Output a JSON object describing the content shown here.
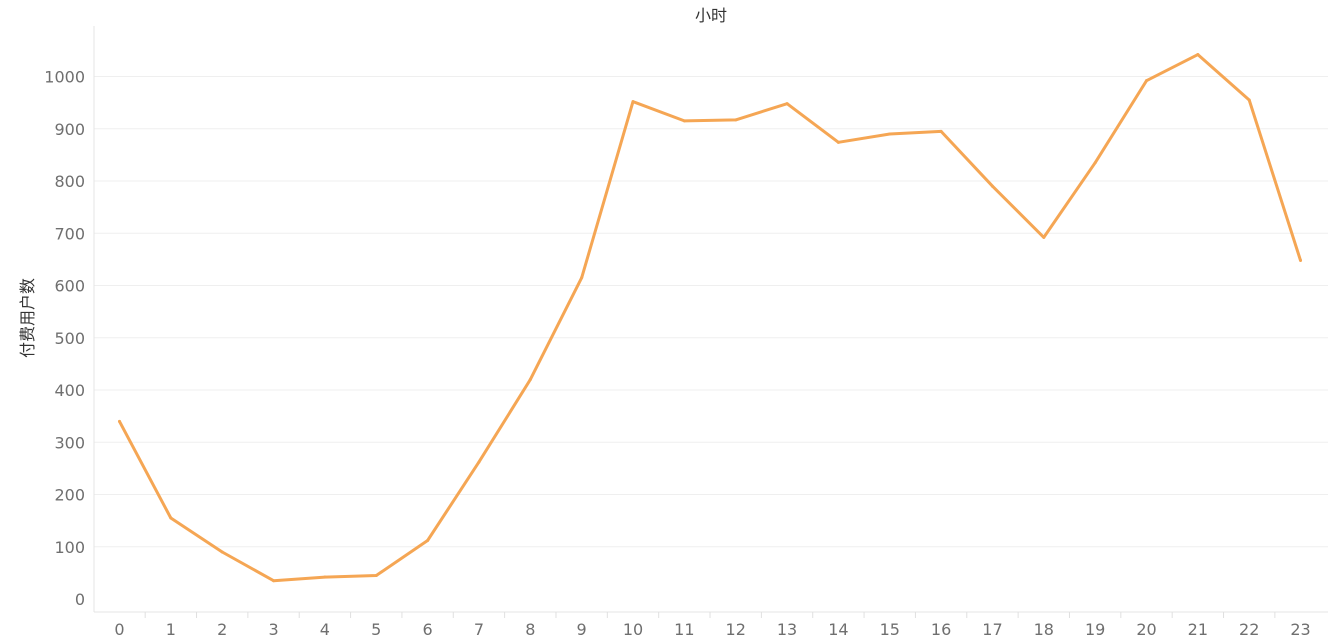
{
  "chart_data": {
    "type": "line",
    "title": "",
    "xlabel": "小时",
    "ylabel": "付费用户数",
    "x": [
      0,
      1,
      2,
      3,
      4,
      5,
      6,
      7,
      8,
      9,
      10,
      11,
      12,
      13,
      14,
      15,
      16,
      17,
      18,
      19,
      20,
      21,
      22,
      23
    ],
    "x_tick_labels": [
      "0",
      "1",
      "2",
      "3",
      "4",
      "5",
      "6",
      "7",
      "8",
      "9",
      "10",
      "11",
      "12",
      "13",
      "14",
      "15",
      "16",
      "17",
      "18",
      "19",
      "20",
      "21",
      "22",
      "23"
    ],
    "y_ticks": [
      0,
      100,
      200,
      300,
      400,
      500,
      600,
      700,
      800,
      900,
      1000
    ],
    "y_tick_labels": [
      "0",
      "100",
      "200",
      "300",
      "400",
      "500",
      "600",
      "700",
      "800",
      "900",
      "1000"
    ],
    "ylim": [
      -20,
      1095
    ],
    "grid": true,
    "x_axis_position": "top-title",
    "series": [
      {
        "color": "#f5a654",
        "values": [
          340,
          155,
          90,
          35,
          42,
          45,
          112,
          262,
          420,
          615,
          952,
          915,
          917,
          948,
          874,
          890,
          895,
          790,
          692,
          835,
          992,
          1042,
          955,
          648
        ]
      }
    ]
  }
}
